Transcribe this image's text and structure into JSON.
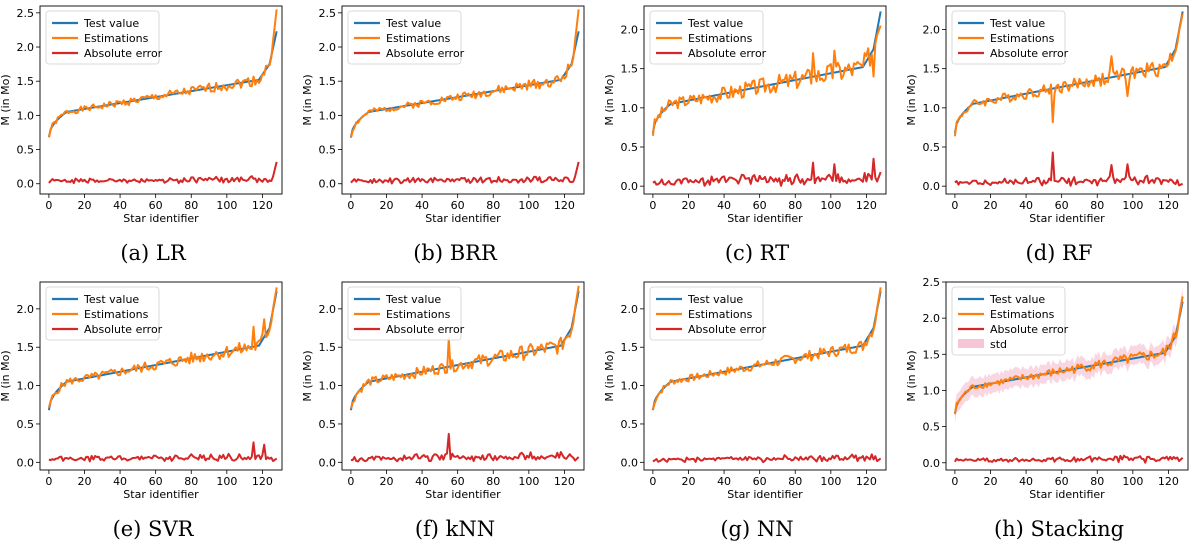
{
  "figure": {
    "xlabel": "Star identifier",
    "ylabel": "M (in Mo)",
    "legend": {
      "test": "Test value",
      "est": "Estimations",
      "err": "Absolute error",
      "std": "std"
    },
    "colors": {
      "test": "#1f77b4",
      "est": "#ff7f0e",
      "err": "#d62728",
      "std": "#f7c6d6"
    },
    "x_ticks": [
      0,
      20,
      40,
      60,
      80,
      100,
      120
    ]
  },
  "chart_data": [
    {
      "type": "line",
      "caption": "(a) LR",
      "xlim": [
        -5,
        131
      ],
      "ylim": [
        -0.15,
        2.6
      ],
      "yticks": [
        0.0,
        0.5,
        1.0,
        1.5,
        2.0,
        2.5
      ],
      "noise": 0.06,
      "err_scale": 0.08,
      "spikes": [],
      "end_est": 2.55,
      "seed": 1
    },
    {
      "type": "line",
      "caption": "(b) BRR",
      "xlim": [
        -5,
        131
      ],
      "ylim": [
        -0.15,
        2.6
      ],
      "yticks": [
        0.0,
        0.5,
        1.0,
        1.5,
        2.0,
        2.5
      ],
      "noise": 0.06,
      "err_scale": 0.08,
      "spikes": [],
      "end_est": 2.55,
      "seed": 2
    },
    {
      "type": "line",
      "caption": "(c) RT",
      "xlim": [
        -5,
        131
      ],
      "ylim": [
        -0.1,
        2.3
      ],
      "yticks": [
        0.0,
        0.5,
        1.0,
        1.5,
        2.0
      ],
      "noise": 0.11,
      "err_scale": 0.11,
      "spikes": [
        [
          90,
          0.3
        ],
        [
          102,
          0.28
        ],
        [
          124,
          0.35
        ]
      ],
      "end_est": 2.05,
      "seed": 3
    },
    {
      "type": "line",
      "caption": "(d) RF",
      "xlim": [
        -5,
        131
      ],
      "ylim": [
        -0.1,
        2.3
      ],
      "yticks": [
        0.0,
        0.5,
        1.0,
        1.5,
        2.0
      ],
      "noise": 0.08,
      "err_scale": 0.09,
      "spikes": [
        [
          55,
          0.43
        ],
        [
          88,
          0.27
        ],
        [
          97,
          0.28
        ]
      ],
      "end_est": 2.2,
      "seed": 4
    },
    {
      "type": "line",
      "caption": "(e) SVR",
      "xlim": [
        -5,
        131
      ],
      "ylim": [
        -0.1,
        2.35
      ],
      "yticks": [
        0.0,
        0.5,
        1.0,
        1.5,
        2.0
      ],
      "noise": 0.07,
      "err_scale": 0.08,
      "spikes": [
        [
          115,
          0.26
        ],
        [
          121,
          0.23
        ]
      ],
      "end_est": 2.28,
      "seed": 5
    },
    {
      "type": "line",
      "caption": "(f) kNN",
      "xlim": [
        -5,
        131
      ],
      "ylim": [
        -0.1,
        2.35
      ],
      "yticks": [
        0.0,
        0.5,
        1.0,
        1.5,
        2.0
      ],
      "noise": 0.08,
      "err_scale": 0.09,
      "spikes": [
        [
          55,
          0.37
        ]
      ],
      "end_est": 2.3,
      "seed": 6
    },
    {
      "type": "line",
      "caption": "(g) NN",
      "xlim": [
        -5,
        131
      ],
      "ylim": [
        -0.1,
        2.35
      ],
      "yticks": [
        0.0,
        0.5,
        1.0,
        1.5,
        2.0
      ],
      "noise": 0.06,
      "err_scale": 0.07,
      "spikes": [],
      "end_est": 2.28,
      "seed": 7
    },
    {
      "type": "line",
      "caption": "(h) Stacking",
      "xlim": [
        -5,
        131
      ],
      "ylim": [
        -0.1,
        2.5
      ],
      "yticks": [
        0.0,
        0.5,
        1.0,
        1.5,
        2.0,
        2.5
      ],
      "noise": 0.06,
      "err_scale": 0.07,
      "spikes": [],
      "end_est": 2.3,
      "seed": 8,
      "has_std": true
    }
  ]
}
